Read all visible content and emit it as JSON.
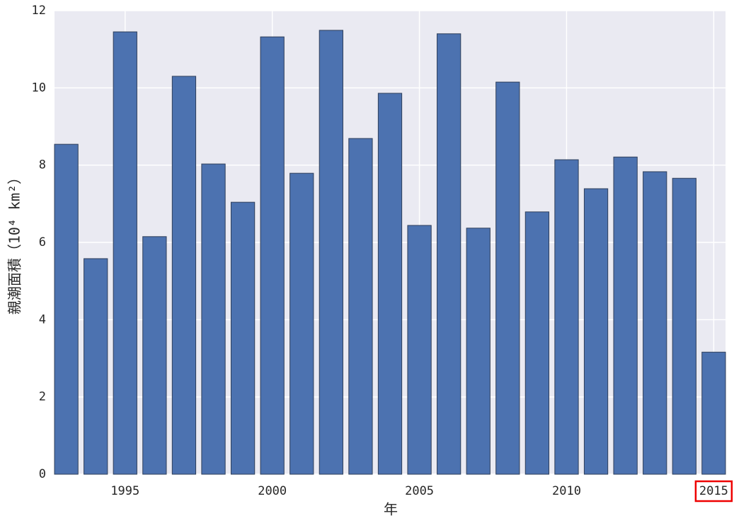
{
  "chart_data": {
    "type": "bar",
    "xlabel": "年",
    "ylabel": "親潮面積（10⁴ km²）",
    "x": [
      1993,
      1994,
      1995,
      1996,
      1997,
      1998,
      1999,
      2000,
      2001,
      2002,
      2003,
      2004,
      2005,
      2006,
      2007,
      2008,
      2009,
      2010,
      2011,
      2012,
      2013,
      2014,
      2015
    ],
    "values": [
      8.54,
      5.58,
      11.45,
      6.15,
      10.3,
      8.03,
      7.04,
      11.32,
      7.79,
      11.49,
      8.69,
      9.86,
      6.44,
      11.4,
      6.37,
      10.15,
      6.79,
      8.14,
      7.39,
      8.21,
      7.83,
      7.66,
      3.16
    ],
    "color": "#4c72b0",
    "xlim": [
      1992.6,
      2015.4
    ],
    "xticks": [
      1995,
      2000,
      2005,
      2010,
      2015
    ],
    "ylim": [
      0,
      12
    ],
    "yticks": [
      0,
      2,
      4,
      6,
      8,
      10,
      12
    ],
    "grid": true
  }
}
